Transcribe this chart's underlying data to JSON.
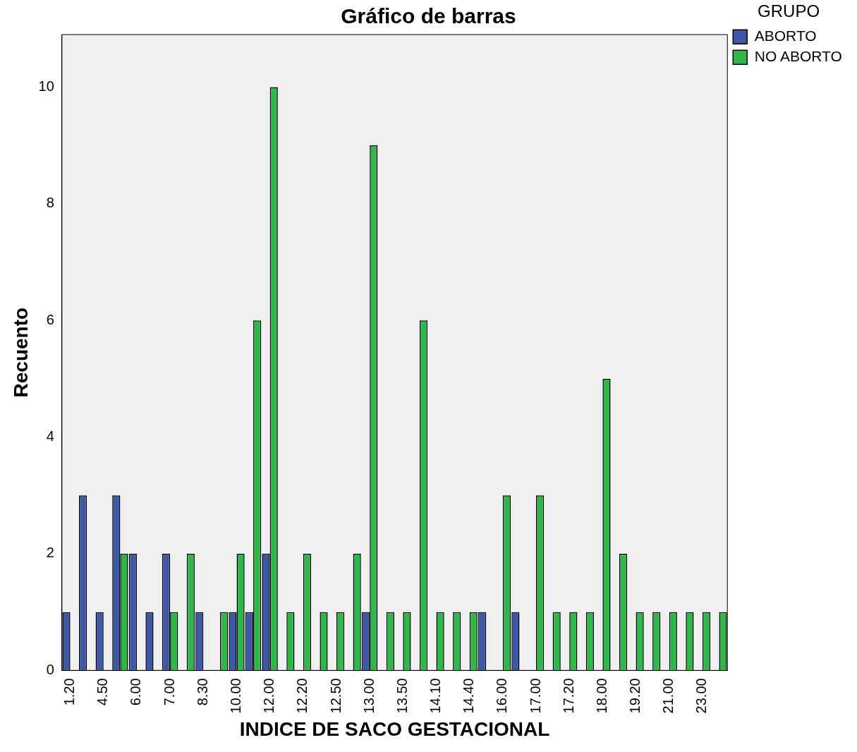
{
  "chart_data": {
    "type": "bar",
    "title": "Gráfico de barras",
    "xlabel": "INDICE DE SACO GESTACIONAL",
    "ylabel": "Recuento",
    "legend_title": "GRUPO",
    "legend": "top right",
    "grid": false,
    "categories": [
      "1.20",
      null,
      "4.50",
      null,
      "6.00",
      null,
      "7.00",
      null,
      "8.30",
      null,
      "10.00",
      null,
      "12.00",
      null,
      "12.20",
      null,
      "12.50",
      null,
      "13.00",
      null,
      "13.50",
      null,
      "14.10",
      null,
      "14.40",
      null,
      "16.00",
      null,
      "17.00",
      null,
      "17.20",
      null,
      "18.00",
      null,
      "19.20",
      null,
      "21.00",
      null,
      "23.00",
      null
    ],
    "series": [
      {
        "name": "ABORTO",
        "color": "#3e58a8",
        "values": [
          1,
          3,
          1,
          3,
          2,
          1,
          2,
          null,
          1,
          null,
          1,
          1,
          2,
          null,
          null,
          null,
          null,
          null,
          1,
          null,
          null,
          null,
          null,
          null,
          null,
          1,
          null,
          1,
          null,
          null,
          null,
          null,
          null,
          null,
          null,
          null,
          null,
          null,
          null,
          null
        ]
      },
      {
        "name": "NO ABORTO",
        "color": "#2eb84a",
        "values": [
          null,
          null,
          null,
          2,
          null,
          null,
          1,
          2,
          null,
          1,
          2,
          6,
          10,
          1,
          2,
          1,
          1,
          2,
          9,
          1,
          1,
          6,
          1,
          1,
          1,
          null,
          3,
          null,
          3,
          1,
          1,
          1,
          5,
          2,
          1,
          1,
          1,
          1,
          1,
          1
        ]
      }
    ],
    "ylim": [
      0,
      10.9
    ],
    "yticks": [
      0,
      2,
      4,
      6,
      8,
      10
    ]
  }
}
